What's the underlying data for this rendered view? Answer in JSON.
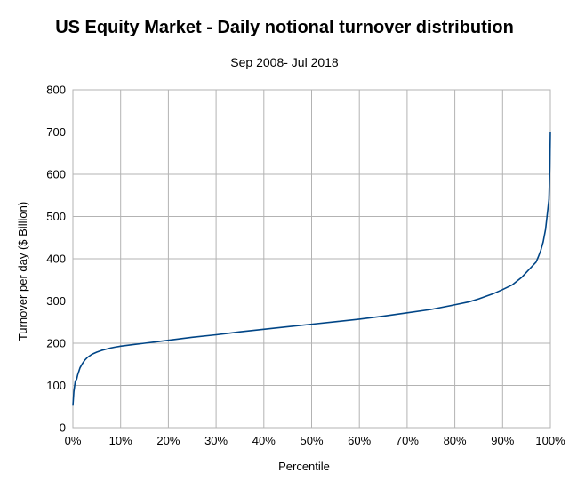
{
  "chart_data": {
    "type": "line",
    "title": "US Equity Market - Daily notional turnover distribution",
    "subtitle": "Sep 2008- Jul 2018",
    "xlabel": "Percentile",
    "ylabel": "Turnover per day ($ Billion)",
    "xlim": [
      0,
      100
    ],
    "ylim": [
      0,
      800
    ],
    "x_ticks": [
      "0%",
      "10%",
      "20%",
      "30%",
      "40%",
      "50%",
      "60%",
      "70%",
      "80%",
      "90%",
      "100%"
    ],
    "y_ticks": [
      "0",
      "100",
      "200",
      "300",
      "400",
      "500",
      "600",
      "700",
      "800"
    ],
    "grid": true,
    "legend": "none",
    "series_color": "#004586",
    "series": [
      {
        "x": [
          0,
          0.2,
          0.5,
          0.8,
          1,
          1.5,
          2,
          2.5,
          3,
          3.5,
          4,
          5,
          6,
          7,
          8,
          9,
          10,
          12,
          15,
          18,
          20,
          25,
          30,
          35,
          40,
          45,
          50,
          55,
          60,
          65,
          70,
          75,
          80,
          83,
          85,
          88,
          90,
          92,
          94,
          95,
          96,
          97,
          97.5,
          98,
          98.5,
          99,
          99.3,
          99.5,
          99.7,
          99.9,
          100
        ],
        "y": [
          52,
          85,
          110,
          115,
          125,
          142,
          152,
          160,
          166,
          170,
          174,
          179,
          183,
          186,
          189,
          191,
          193,
          196,
          200,
          204,
          207,
          214,
          220,
          227,
          233,
          239,
          245,
          251,
          257,
          264,
          272,
          280,
          291,
          298,
          305,
          317,
          327,
          338,
          356,
          368,
          380,
          392,
          405,
          420,
          440,
          470,
          500,
          520,
          540,
          620,
          700
        ]
      }
    ]
  }
}
